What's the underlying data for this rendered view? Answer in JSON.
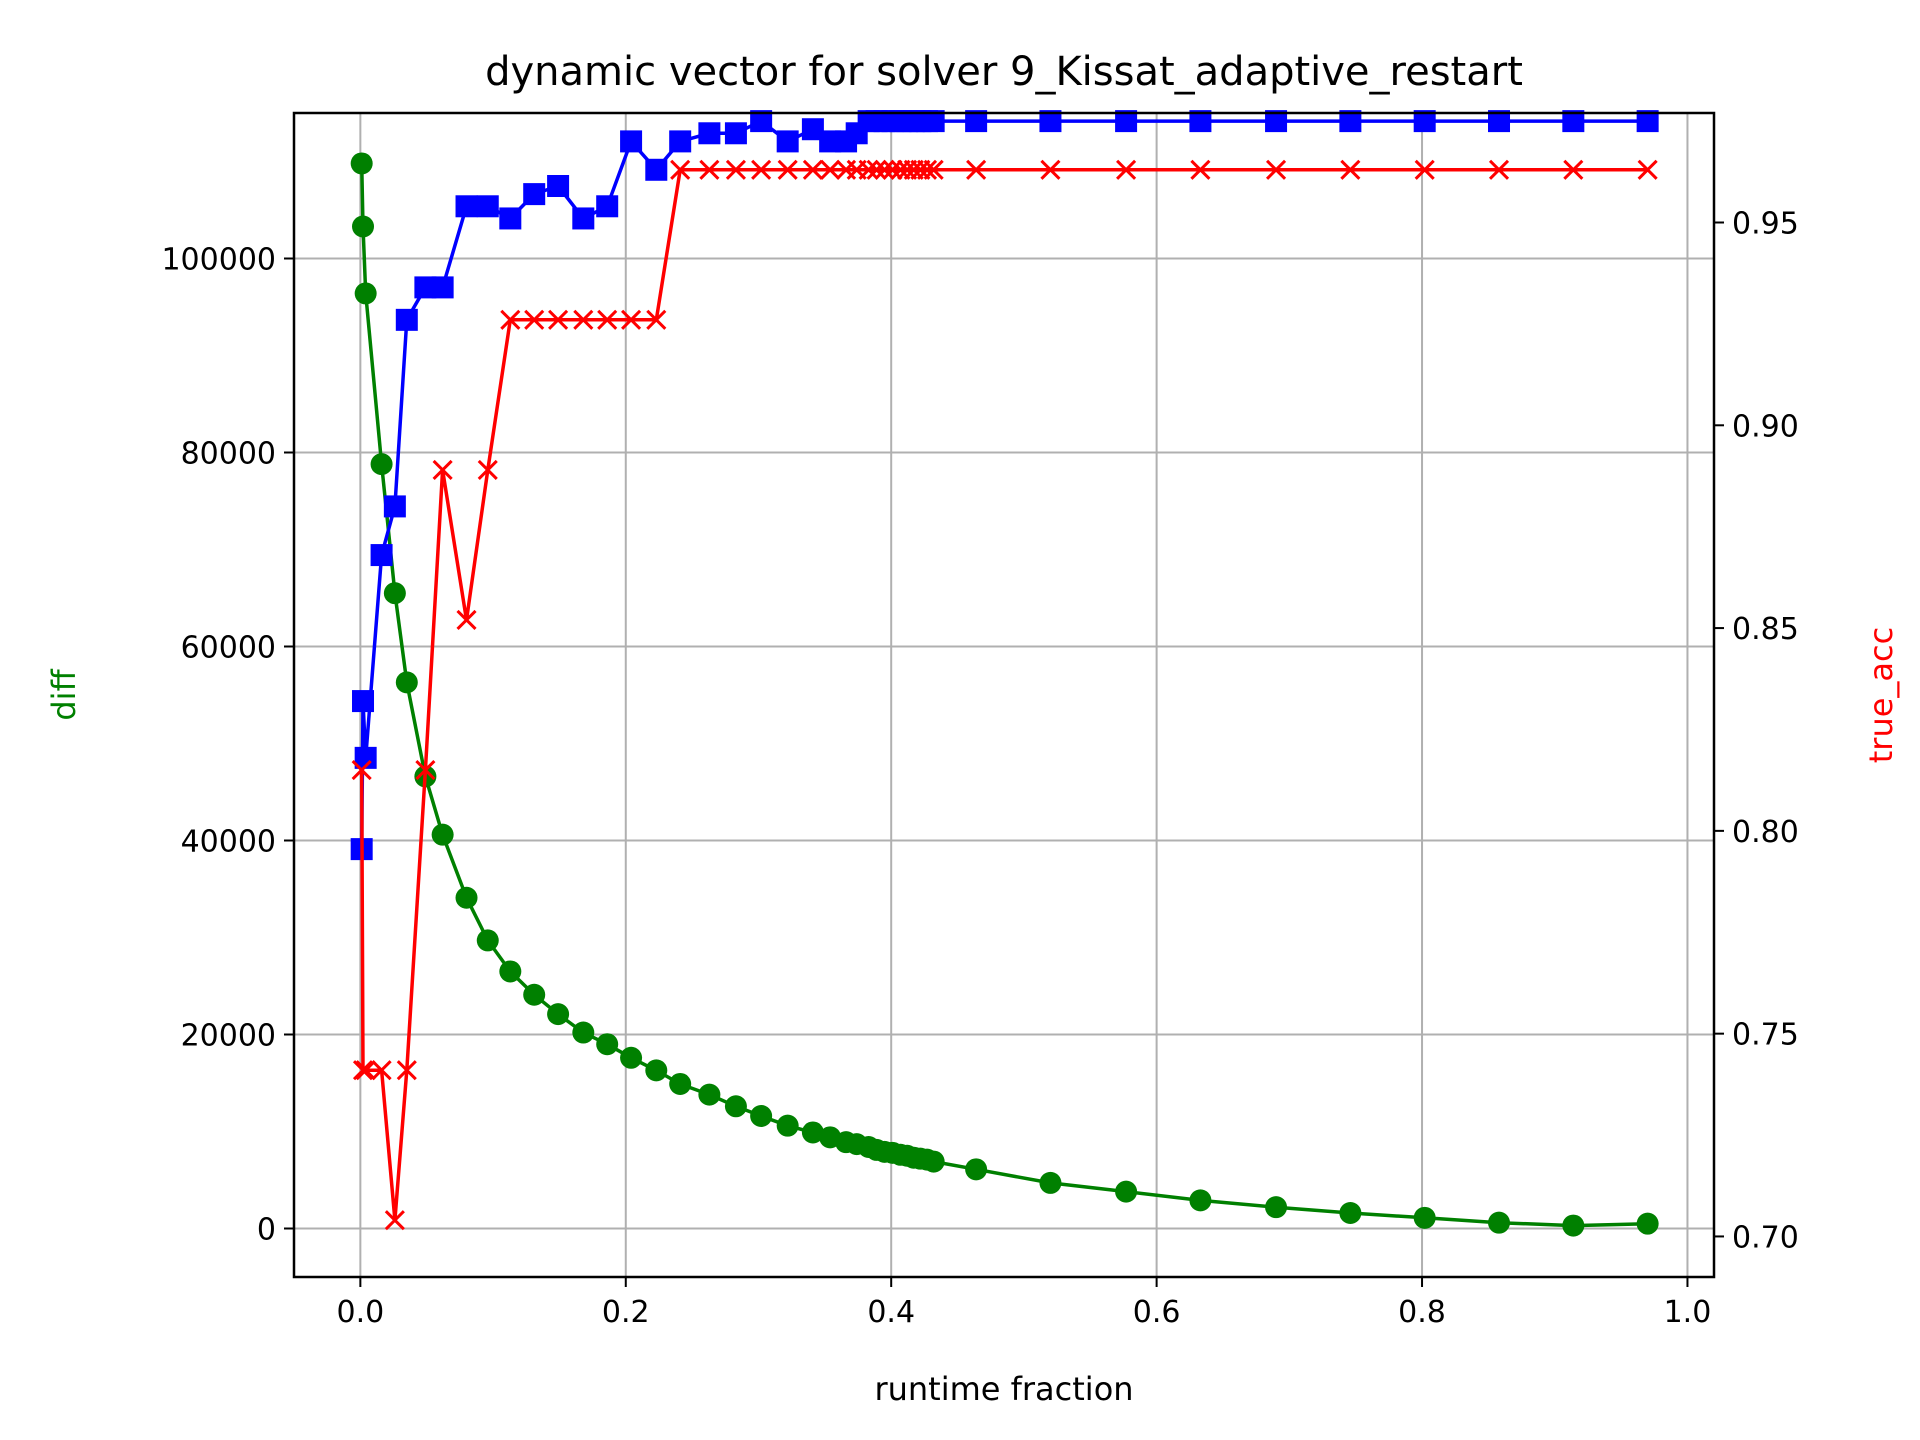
{
  "chart_data": {
    "type": "line",
    "title": "dynamic vector for solver 9_Kissat_adaptive_restart",
    "xlabel": "runtime fraction",
    "ylabel": "diff",
    "y2label": "true_acc",
    "xlim": [
      -0.05,
      1.02
    ],
    "ylim": [
      -5000,
      115000
    ],
    "y2lim": [
      0.69,
      0.977
    ],
    "xticks": [
      0.0,
      0.2,
      0.4,
      0.6,
      0.8,
      1.0
    ],
    "xtick_labels": [
      "0.0",
      "0.2",
      "0.4",
      "0.6",
      "0.8",
      "1.0"
    ],
    "yticks": [
      0,
      20000,
      40000,
      60000,
      80000,
      100000
    ],
    "ytick_labels": [
      "0",
      "20000",
      "40000",
      "60000",
      "80000",
      "100000"
    ],
    "y2ticks": [
      0.7,
      0.75,
      0.8,
      0.85,
      0.9,
      0.95
    ],
    "y2tick_labels": [
      "0.70",
      "0.75",
      "0.80",
      "0.85",
      "0.90",
      "0.95"
    ],
    "grid": true,
    "colors": {
      "ylabel": "#008000",
      "y2label": "#ff0000"
    },
    "series": [
      {
        "axis": "left",
        "color": "#008000",
        "marker": "circle",
        "x": [
          0.001,
          0.002,
          0.004,
          0.016,
          0.026,
          0.035,
          0.049,
          0.062,
          0.08,
          0.096,
          0.113,
          0.131,
          0.149,
          0.168,
          0.186,
          0.204,
          0.223,
          0.241,
          0.263,
          0.283,
          0.302,
          0.322,
          0.341,
          0.354,
          0.366,
          0.374,
          0.383,
          0.389,
          0.395,
          0.401,
          0.407,
          0.412,
          0.417,
          0.422,
          0.427,
          0.432,
          0.464,
          0.52,
          0.577,
          0.633,
          0.69,
          0.746,
          0.802,
          0.858,
          0.914,
          0.97
        ],
        "values": [
          109800,
          103300,
          96400,
          78800,
          65500,
          56300,
          46600,
          40600,
          34100,
          29700,
          26500,
          24100,
          22100,
          20200,
          19000,
          17600,
          16300,
          14900,
          13800,
          12600,
          11600,
          10600,
          9900,
          9400,
          8900,
          8700,
          8400,
          8100,
          7900,
          7800,
          7600,
          7500,
          7300,
          7200,
          7100,
          6900,
          6100,
          4700,
          3800,
          2900,
          2200,
          1600,
          1100,
          600,
          300,
          500
        ]
      },
      {
        "axis": "right",
        "color": "#0000ff",
        "marker": "square",
        "x": [
          0.001,
          0.002,
          0.004,
          0.016,
          0.026,
          0.035,
          0.049,
          0.062,
          0.08,
          0.096,
          0.113,
          0.131,
          0.149,
          0.168,
          0.186,
          0.204,
          0.223,
          0.241,
          0.263,
          0.283,
          0.302,
          0.322,
          0.341,
          0.354,
          0.366,
          0.374,
          0.383,
          0.389,
          0.395,
          0.401,
          0.407,
          0.412,
          0.417,
          0.422,
          0.427,
          0.432,
          0.464,
          0.52,
          0.577,
          0.633,
          0.69,
          0.746,
          0.802,
          0.858,
          0.914,
          0.97
        ],
        "values": [
          0.7955,
          0.832,
          0.818,
          0.868,
          0.88,
          0.926,
          0.934,
          0.934,
          0.954,
          0.954,
          0.951,
          0.957,
          0.959,
          0.951,
          0.954,
          0.97,
          0.963,
          0.97,
          0.972,
          0.972,
          0.975,
          0.97,
          0.973,
          0.97,
          0.97,
          0.972,
          0.975,
          0.975,
          0.975,
          0.975,
          0.975,
          0.975,
          0.975,
          0.975,
          0.975,
          0.975,
          0.975,
          0.975,
          0.975,
          0.975,
          0.975,
          0.975,
          0.975,
          0.975,
          0.975,
          0.975
        ]
      },
      {
        "axis": "right",
        "color": "#ff0000",
        "marker": "x",
        "x": [
          0.001,
          0.002,
          0.004,
          0.016,
          0.026,
          0.035,
          0.049,
          0.062,
          0.08,
          0.096,
          0.113,
          0.131,
          0.149,
          0.168,
          0.186,
          0.204,
          0.223,
          0.241,
          0.263,
          0.283,
          0.302,
          0.322,
          0.341,
          0.354,
          0.366,
          0.374,
          0.383,
          0.389,
          0.395,
          0.401,
          0.407,
          0.412,
          0.417,
          0.422,
          0.427,
          0.432,
          0.464,
          0.52,
          0.577,
          0.633,
          0.69,
          0.746,
          0.802,
          0.858,
          0.914,
          0.97
        ],
        "values": [
          0.815,
          0.741,
          0.741,
          0.741,
          0.704,
          0.741,
          0.815,
          0.889,
          0.852,
          0.889,
          0.926,
          0.926,
          0.926,
          0.926,
          0.926,
          0.926,
          0.926,
          0.963,
          0.963,
          0.963,
          0.963,
          0.963,
          0.963,
          0.963,
          0.963,
          0.963,
          0.963,
          0.963,
          0.963,
          0.963,
          0.963,
          0.963,
          0.963,
          0.963,
          0.963,
          0.963,
          0.963,
          0.963,
          0.963,
          0.963,
          0.963,
          0.963,
          0.963,
          0.963,
          0.963,
          0.963
        ]
      }
    ]
  }
}
